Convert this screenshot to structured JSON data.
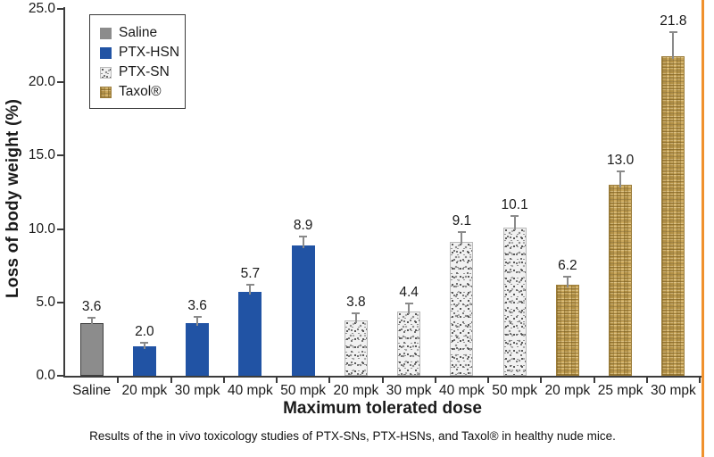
{
  "page": {
    "background": "#ffffff",
    "accent_rule_color": "#f0912d",
    "axis_color": "#3c3c3c",
    "error_bar_color": "#8a8a8a"
  },
  "caption": "Results of the in vivo toxicology studies of PTX-SNs, PTX-HSNs, and Taxol® in healthy nude mice.",
  "chart_data": {
    "type": "bar",
    "title": "",
    "xlabel": "Maximum tolerated dose",
    "ylabel": "Loss of body weight (%)",
    "ylim": [
      0,
      25
    ],
    "ytick_labels": [
      "0.0",
      "5.0",
      "10.0",
      "15.0",
      "20.0",
      "25.0"
    ],
    "grid": false,
    "legend_position": "top-left",
    "series": [
      {
        "name": "Saline",
        "style": "solid",
        "color": "#8c8c8c",
        "border": "#404040"
      },
      {
        "name": "PTX-HSN",
        "style": "solid",
        "color": "#2153a4",
        "border": ""
      },
      {
        "name": "PTX-SN",
        "style": "speckle",
        "color": "#f1f1f1"
      },
      {
        "name": "Taxol®",
        "style": "weave",
        "color": "#c7a14e"
      }
    ],
    "bars": [
      {
        "category": "Saline",
        "series": 0,
        "value": 3.6,
        "error": 0.35,
        "value_label": "3.6"
      },
      {
        "category": "20 mpk",
        "series": 1,
        "value": 2.0,
        "error": 0.25,
        "value_label": "2.0"
      },
      {
        "category": "30 mpk",
        "series": 1,
        "value": 3.6,
        "error": 0.4,
        "value_label": "3.6"
      },
      {
        "category": "40 mpk",
        "series": 1,
        "value": 5.7,
        "error": 0.5,
        "value_label": "5.7"
      },
      {
        "category": "50 mpk",
        "series": 1,
        "value": 8.9,
        "error": 0.6,
        "value_label": "8.9"
      },
      {
        "category": "20 mpk",
        "series": 2,
        "value": 3.8,
        "error": 0.45,
        "value_label": "3.8"
      },
      {
        "category": "30 mpk",
        "series": 2,
        "value": 4.4,
        "error": 0.5,
        "value_label": "4.4"
      },
      {
        "category": "40 mpk",
        "series": 2,
        "value": 9.1,
        "error": 0.7,
        "value_label": "9.1"
      },
      {
        "category": "50 mpk",
        "series": 2,
        "value": 10.1,
        "error": 0.8,
        "value_label": "10.1"
      },
      {
        "category": "20 mpk",
        "series": 3,
        "value": 6.2,
        "error": 0.55,
        "value_label": "6.2"
      },
      {
        "category": "25 mpk",
        "series": 3,
        "value": 13.0,
        "error": 0.9,
        "value_label": "13.0"
      },
      {
        "category": "30 mpk",
        "series": 3,
        "value": 21.8,
        "error": 1.6,
        "value_label": "21.8"
      }
    ]
  }
}
